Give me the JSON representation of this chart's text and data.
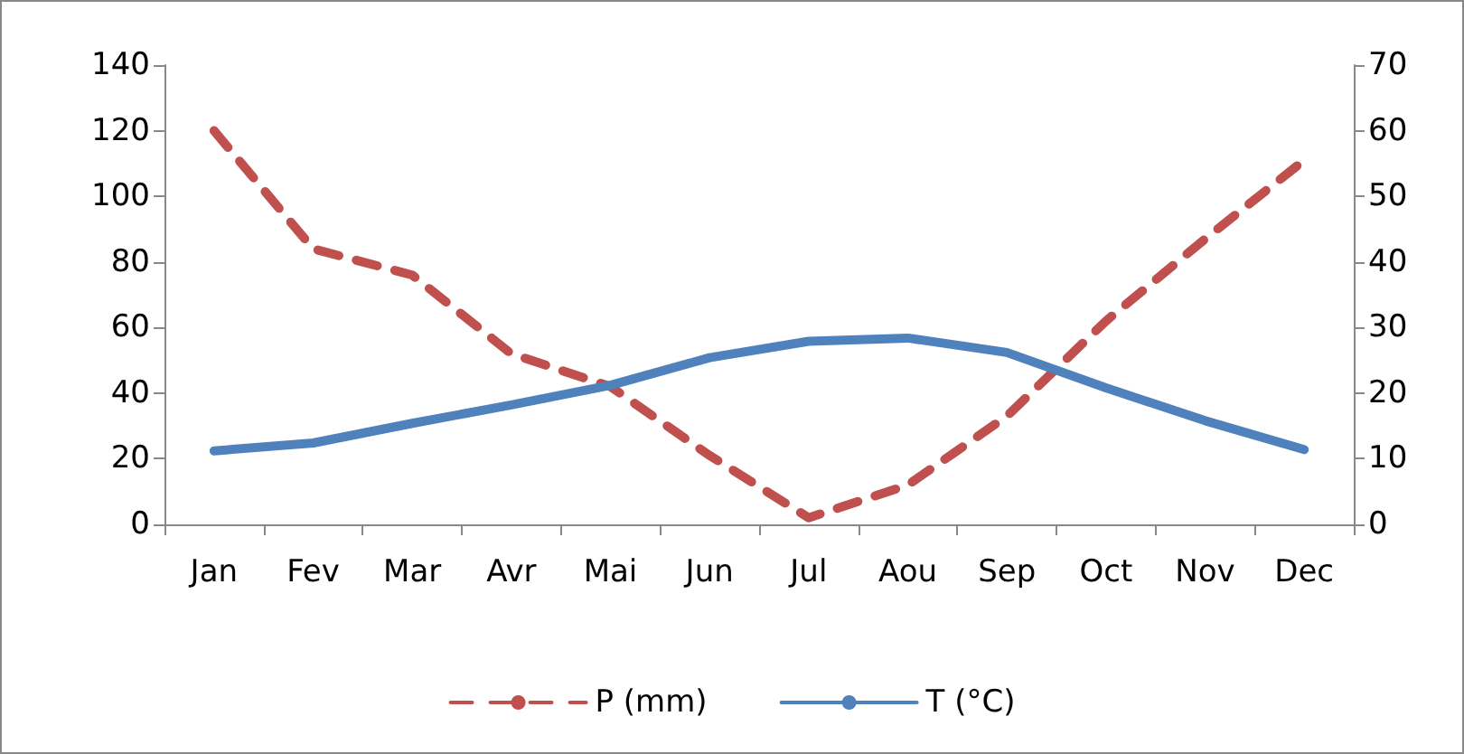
{
  "chart_data": {
    "type": "line",
    "categories": [
      "Jan",
      "Fev",
      "Mar",
      "Avr",
      "Mai",
      "Jun",
      "Jul",
      "Aou",
      "Sep",
      "Oct",
      "Nov",
      "Dec"
    ],
    "series": [
      {
        "name": "P (mm)",
        "color": "#c0504d",
        "line_style": "dashed",
        "values": [
          120,
          84,
          76,
          52,
          42,
          21,
          2,
          12,
          33,
          62,
          87,
          111
        ]
      },
      {
        "name": "T (°C)",
        "color": "#4f81bd",
        "line_style": "solid",
        "axis": "y2",
        "values": [
          11.2,
          12.4,
          15.4,
          18.2,
          21.2,
          25.4,
          27.9,
          28.4,
          26.2,
          20.8,
          15.8,
          11.4
        ]
      }
    ],
    "ylim": [
      0,
      140
    ],
    "yticks": [
      0,
      20,
      40,
      60,
      80,
      100,
      120,
      140
    ],
    "y2lim": [
      0,
      70
    ],
    "y2ticks": [
      0,
      10,
      20,
      30,
      40,
      50,
      60,
      70
    ],
    "grid": false,
    "legend": "bottom",
    "marker": "none"
  }
}
